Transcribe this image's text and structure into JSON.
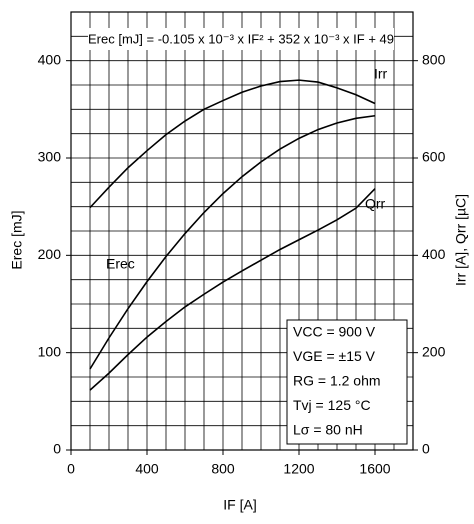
{
  "chart_data": {
    "type": "line",
    "annotation": "Erec [mJ] = -0.105 x 10⁻³ x IF² + 352 x 10⁻³ x IF + 49",
    "conditions": [
      "VCC = 900 V",
      "VGE = ±15 V",
      "RG = 1.2 ohm",
      "Tvj = 125 °C",
      "Lσ = 80 nH"
    ],
    "x_label": "IF [A]",
    "y_label": "Erec [mJ]",
    "y2_label": "Irr [A], Qrr [µC]",
    "x": [
      100,
      200,
      300,
      400,
      500,
      600,
      700,
      800,
      900,
      1000,
      1100,
      1200,
      1300,
      1400,
      1500,
      1600
    ],
    "series": [
      {
        "name": "Erec",
        "color": "#000000",
        "values": [
          83.2,
          115.2,
          145.2,
          173,
          198.8,
          222.4,
          244,
          263.4,
          280.8,
          296,
          309.2,
          320.2,
          329.2,
          336,
          340.8,
          343.4
        ]
      },
      {
        "name": "Irr",
        "color": "#000000",
        "axis": "y2",
        "values": [
          498,
          540,
          580,
          615,
          648,
          676,
          700,
          718,
          735,
          748,
          757,
          760,
          756,
          744,
          730,
          712
        ]
      },
      {
        "name": "Qrr",
        "color": "#000000",
        "axis": "y2",
        "values": [
          123,
          158,
          196,
          232,
          264,
          294,
          320,
          345,
          368,
          390,
          412,
          432,
          452,
          473,
          497,
          537
        ]
      }
    ],
    "xlim": [
      0,
      1800
    ],
    "xticks": [
      0,
      400,
      800,
      1200,
      1600
    ],
    "ylim": [
      0,
      450
    ],
    "yticks": [
      0,
      100,
      200,
      300,
      400
    ],
    "y2lim": [
      0,
      900
    ],
    "y2ticks": [
      0,
      200,
      400,
      600,
      800
    ],
    "grid": true
  }
}
